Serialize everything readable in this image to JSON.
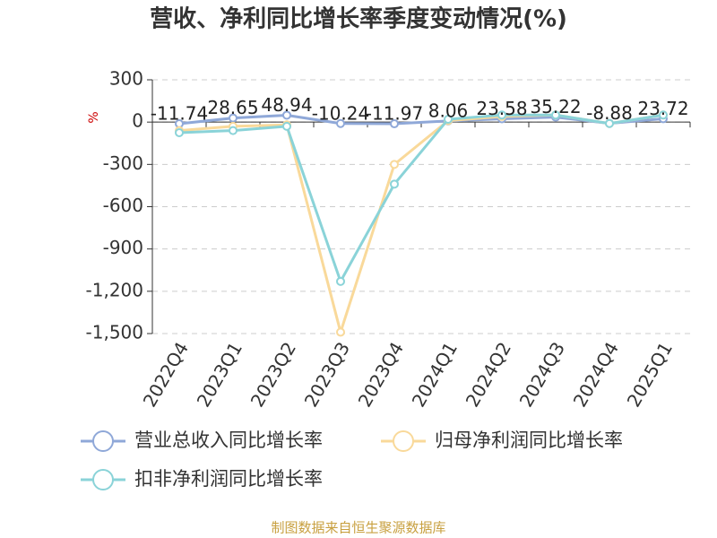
{
  "chart_data": {
    "type": "line",
    "title": "营收、净利同比增长率季度变动情况(%)",
    "y_unit": "%",
    "source": "制图数据来自恒生聚源数据库",
    "categories": [
      "2022Q4",
      "2023Q1",
      "2023Q2",
      "2023Q3",
      "2023Q4",
      "2024Q1",
      "2024Q2",
      "2024Q3",
      "2024Q4",
      "2025Q1"
    ],
    "series": [
      {
        "name": "营业总收入同比增长率",
        "color": "#8fa8d8",
        "values": [
          -11.74,
          28.65,
          48.94,
          -10.24,
          -11.97,
          8.06,
          23.58,
          35.22,
          -8.88,
          23.72
        ]
      },
      {
        "name": "归母净利润同比增长率",
        "color": "#f9d99a",
        "values": [
          -60,
          -30,
          -20,
          -1490,
          -300,
          10,
          40,
          50,
          -10,
          50
        ]
      },
      {
        "name": "扣非净利润同比增长率",
        "color": "#8ad3d8",
        "values": [
          -75,
          -60,
          -30,
          -1130,
          -440,
          20,
          50,
          50,
          -10,
          50
        ]
      }
    ],
    "ylim": [
      -1500,
      300
    ],
    "yticks": [
      300,
      0,
      -300,
      -600,
      -900,
      {
        "value": -1200,
        "label": "-1,200"
      },
      {
        "value": -1500,
        "label": "-1,500"
      }
    ],
    "grid": true
  }
}
